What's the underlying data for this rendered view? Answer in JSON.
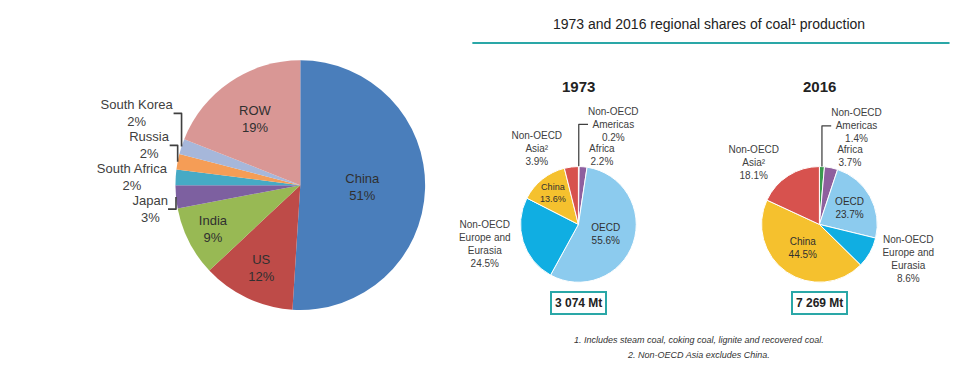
{
  "figure": {
    "title": "1973 and 2016 regional shares of coal¹ production",
    "notes": [
      "1. Includes steam coal, coking coal, lignite and recovered coal.",
      "2. Non-OECD Asia excludes China."
    ]
  },
  "chart_data": [
    {
      "type": "pie",
      "categories": [
        "China",
        "US",
        "India",
        "Japan",
        "South Africa",
        "Russia",
        "South Korea",
        "ROW"
      ],
      "values": [
        51,
        12,
        9,
        3,
        2,
        2,
        2,
        19
      ],
      "value_labels": [
        "51%",
        "12%",
        "9%",
        "3%",
        "2%",
        "2%",
        "2%",
        "19%"
      ],
      "colors": [
        "#4a7ebb",
        "#be4b48",
        "#98b954",
        "#7d60a0",
        "#46aac5",
        "#f59d56",
        "#a6b7da",
        "#d99795"
      ],
      "data_labels": true
    },
    {
      "type": "pie",
      "title": "1973",
      "categories": [
        "Non-OECD Americas",
        "Africa",
        "OECD",
        "Non-OECD Europe and Eurasia",
        "China",
        "Non-OECD Asia²"
      ],
      "values": [
        0.2,
        2.2,
        55.6,
        24.5,
        13.6,
        3.9
      ],
      "value_labels": [
        "0.2%",
        "2.2%",
        "55.6%",
        "24.5%",
        "13.6%",
        "3.9%"
      ],
      "colors": [
        "#3a9a4e",
        "#8e5f9e",
        "#8ccbee",
        "#10aee2",
        "#f5c12e",
        "#d7524e"
      ],
      "data_labels": true,
      "total": {
        "value": 3074,
        "label": "3 074 Mt"
      }
    },
    {
      "type": "pie",
      "title": "2016",
      "categories": [
        "Non-OECD Americas",
        "Africa",
        "OECD",
        "Non-OECD Europe and Eurasia",
        "China",
        "Non-OECD Asia²"
      ],
      "values": [
        1.4,
        3.7,
        23.7,
        8.6,
        44.5,
        18.1
      ],
      "value_labels": [
        "1.4%",
        "3.7%",
        "23.7%",
        "8.6%",
        "44.5%",
        "18.1%"
      ],
      "colors": [
        "#3a9a4e",
        "#8e5f9e",
        "#8ccbee",
        "#10aee2",
        "#f5c12e",
        "#d7524e"
      ],
      "data_labels": true,
      "total": {
        "value": 7269,
        "label": "7 269 Mt"
      }
    }
  ]
}
